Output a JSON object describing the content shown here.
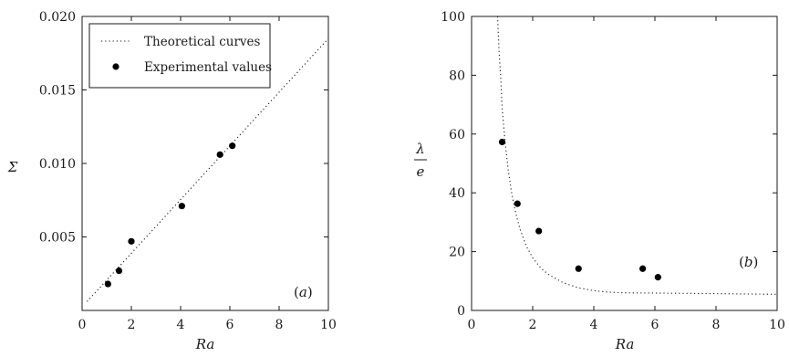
{
  "chart_data": [
    {
      "type": "scatter",
      "panel_label_prefix": "(",
      "panel_label_letter": "a",
      "panel_label_suffix": ")",
      "xlabel": "Ra",
      "ylabel": "Σ",
      "xlim": [
        0,
        10
      ],
      "ylim": [
        0,
        0.02
      ],
      "x_ticks": [
        0,
        2,
        4,
        6,
        8,
        10
      ],
      "x_tick_labels": [
        "0",
        "2",
        "4",
        "6",
        "8",
        "10"
      ],
      "y_ticks": [
        0.005,
        0.01,
        0.015,
        0.02
      ],
      "y_tick_labels": [
        "0.005",
        "0.010",
        "0.015",
        "0.020"
      ],
      "grid": false,
      "legend": {
        "placement": "top-left",
        "entries": [
          {
            "label": "Theoretical curves",
            "style": "dotted-line"
          },
          {
            "label": "Experimental values",
            "style": "filled-circle"
          }
        ]
      },
      "series": [
        {
          "name": "Theoretical curves",
          "kind": "line",
          "x": [
            0.2,
            10
          ],
          "y": [
            0.0006,
            0.0185
          ]
        },
        {
          "name": "Experimental values",
          "kind": "points",
          "x": [
            1.05,
            1.5,
            2.0,
            4.05,
            5.6,
            6.1
          ],
          "y": [
            0.0018,
            0.0027,
            0.0047,
            0.0071,
            0.0106,
            0.0112
          ]
        }
      ]
    },
    {
      "type": "scatter",
      "panel_label_prefix": "(",
      "panel_label_letter": "b",
      "panel_label_suffix": ")",
      "xlabel": "Ra",
      "ylabel_num": "λ",
      "ylabel_den": "e",
      "xlim": [
        0,
        10
      ],
      "ylim": [
        0,
        100
      ],
      "x_ticks": [
        0,
        2,
        4,
        6,
        8,
        10
      ],
      "x_tick_labels": [
        "0",
        "2",
        "4",
        "6",
        "8",
        "10"
      ],
      "y_ticks": [
        0,
        20,
        40,
        60,
        80,
        100
      ],
      "y_tick_labels": [
        "0",
        "20",
        "40",
        "60",
        "80",
        "100"
      ],
      "grid": false,
      "series": [
        {
          "name": "Theoretical curves",
          "kind": "curve",
          "x": [
            0.85,
            0.9,
            0.95,
            1.0,
            1.1,
            1.2,
            1.3,
            1.4,
            1.5,
            1.6,
            1.8,
            2.0,
            2.25,
            2.5,
            3.0,
            3.5,
            4.0,
            4.5,
            5.0,
            6.0,
            7.0,
            8.0,
            9.0,
            10.0
          ],
          "y": [
            100,
            88.2,
            79.9,
            69.0,
            56.8,
            47.7,
            40.7,
            35.2,
            30.8,
            27.2,
            21.7,
            17.9,
            14.6,
            12.3,
            9.4,
            7.7,
            6.7,
            6.2,
            6.0,
            5.9,
            5.8,
            5.7,
            5.6,
            5.5
          ]
        },
        {
          "name": "Experimental values",
          "kind": "points",
          "x": [
            1.0,
            1.5,
            2.2,
            3.5,
            5.6,
            6.1
          ],
          "y": [
            57.3,
            36.3,
            27.0,
            14.2,
            14.2,
            11.3
          ]
        }
      ]
    }
  ]
}
